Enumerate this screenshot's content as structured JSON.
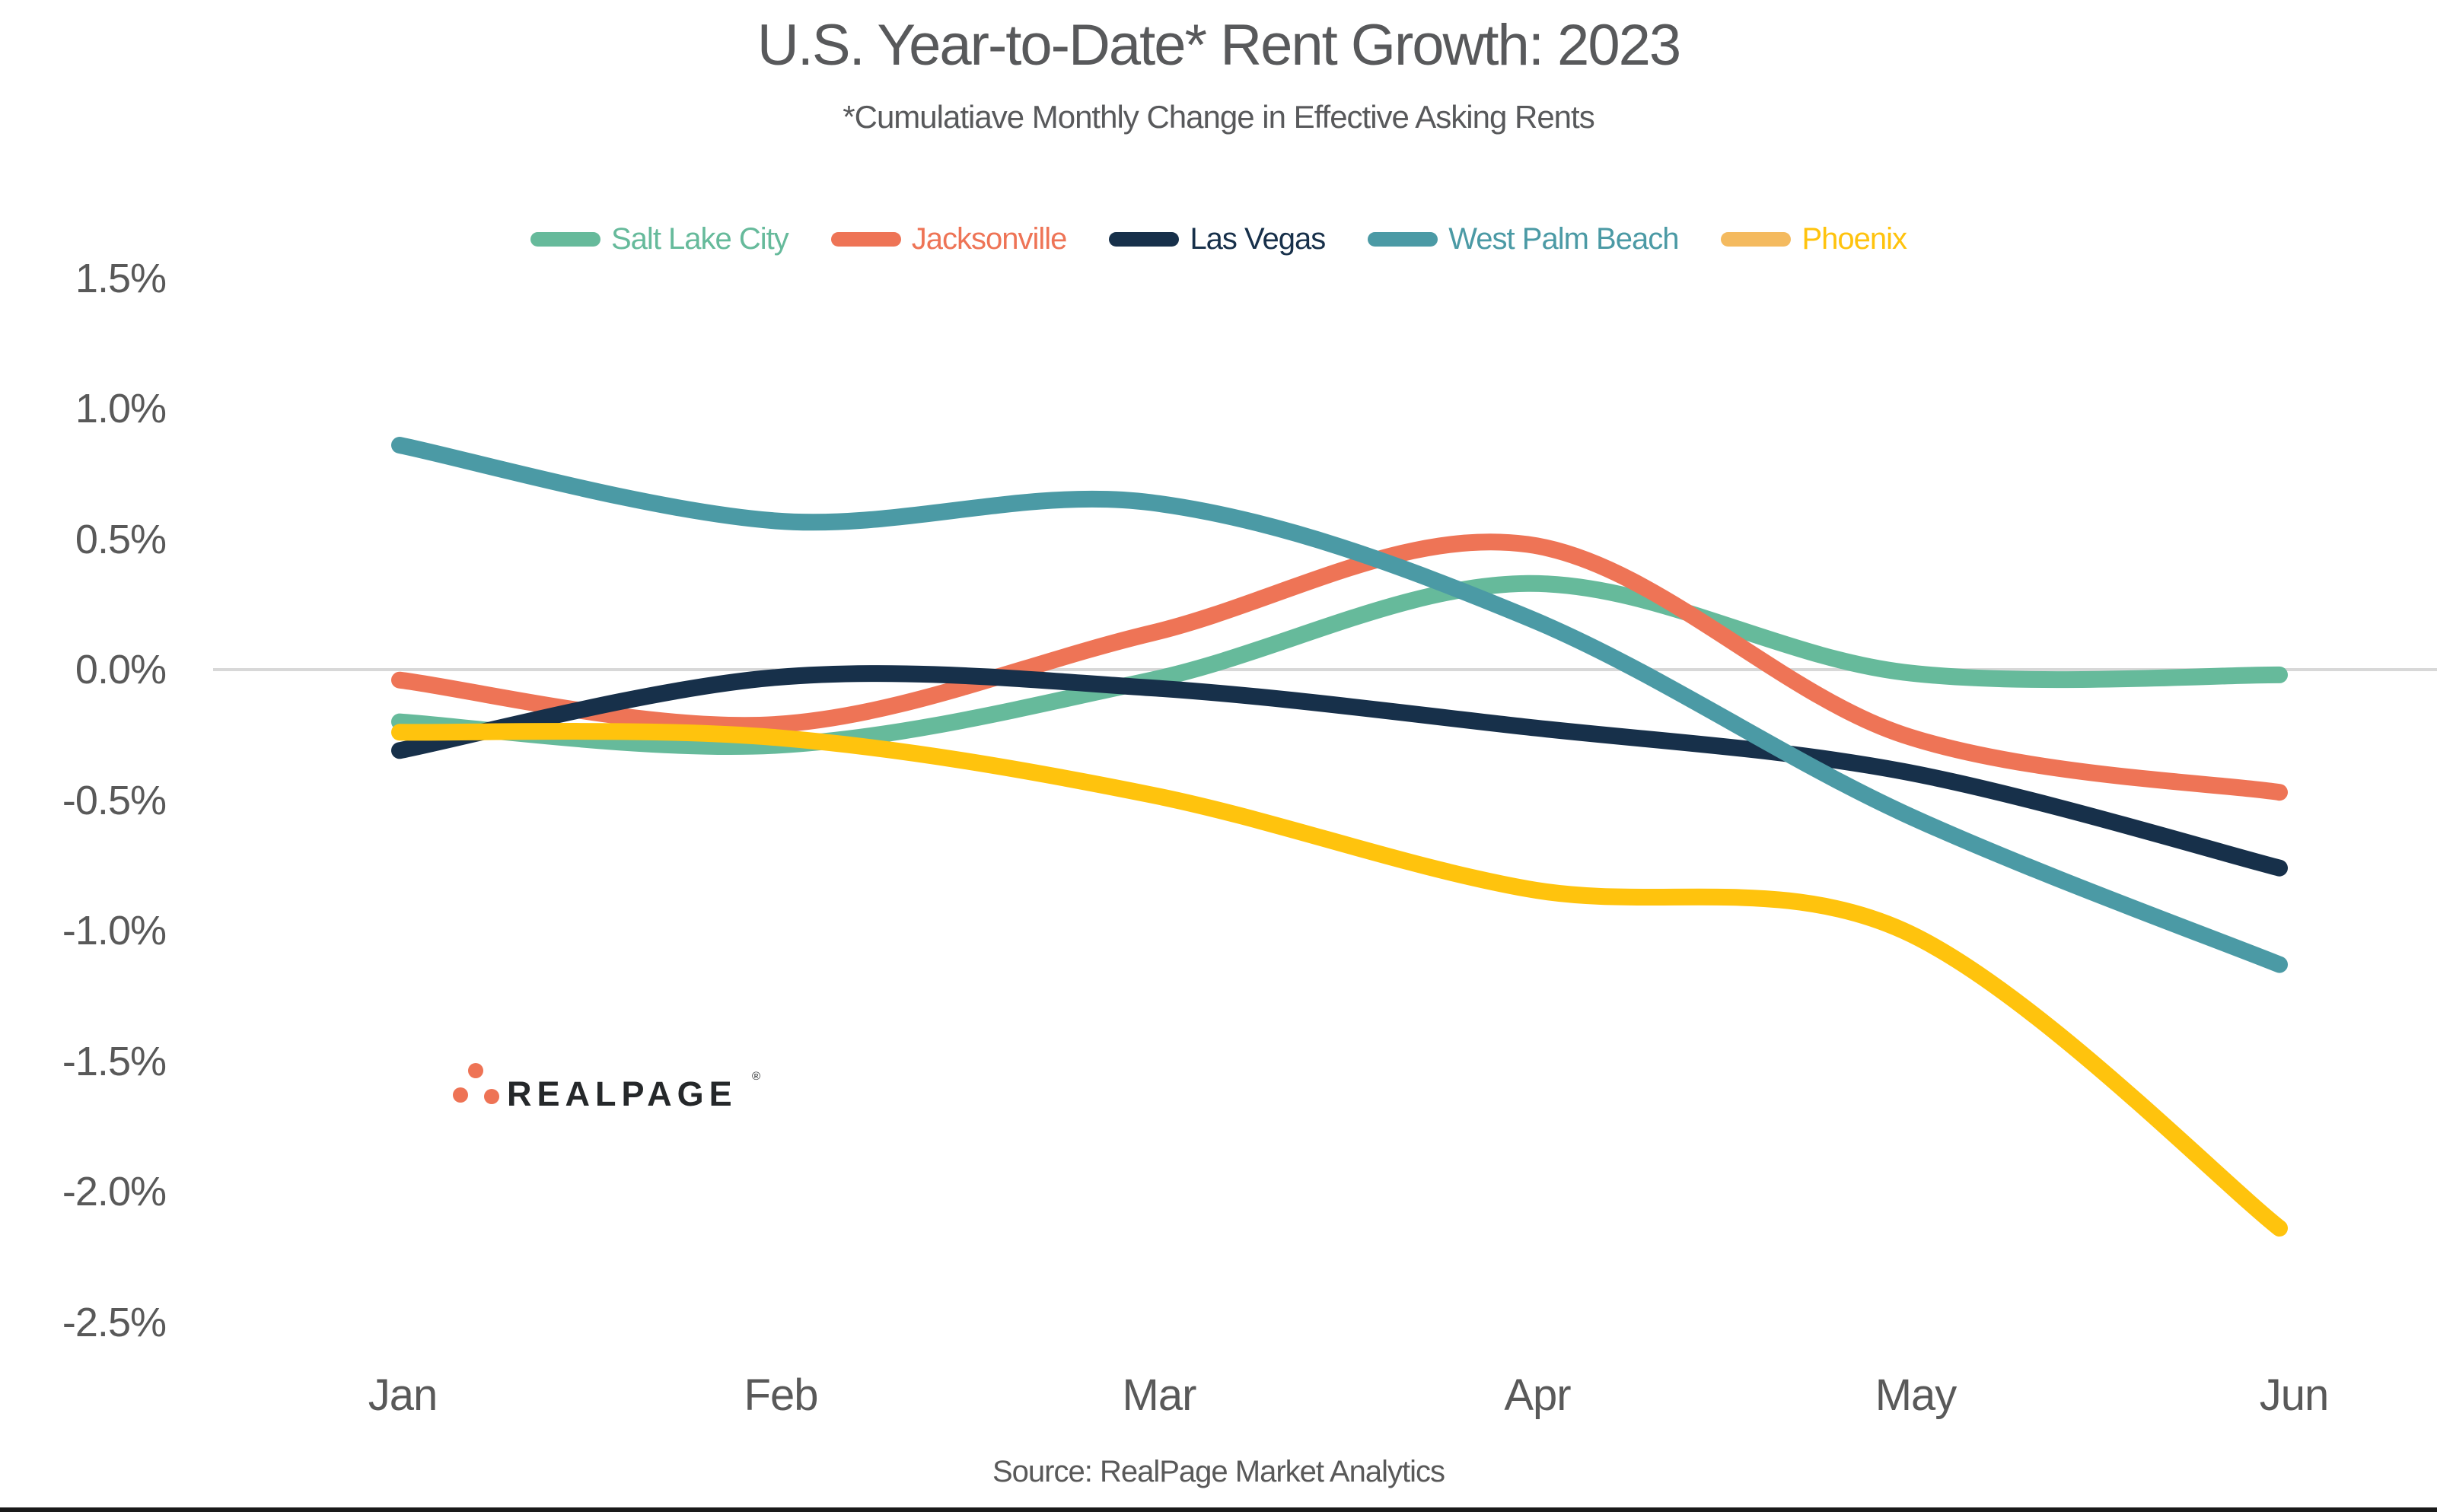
{
  "title": "U.S. Year-to-Date* Rent Growth: 2023",
  "subtitle": "*Cumulatiave Monthly Change in Effective Asking Rents",
  "source": "Source: RealPage Market Analytics",
  "logo": {
    "text": "REALPAGE",
    "registered_mark": "®",
    "dot_color": "#ee7355",
    "text_color": "#25282a"
  },
  "colors": {
    "title_text": "#58595b",
    "axis_text": "#595959",
    "zero_gridline": "#d8d8d8",
    "background": "#ffffff",
    "bottom_border": "#1a1a1a"
  },
  "chart_data": {
    "type": "line",
    "title": "U.S. Year-to-Date* Rent Growth: 2023",
    "subtitle": "*Cumulatiave Monthly Change in Effective Asking Rents",
    "categories": [
      "Jan",
      "Feb",
      "Mar",
      "Apr",
      "May",
      "Jun"
    ],
    "series": [
      {
        "name": "Salt Lake City",
        "color": "#66ba9b",
        "swatch_color": "#66ba9b",
        "values": [
          -0.2,
          -0.29,
          -0.04,
          0.33,
          -0.01,
          -0.02
        ]
      },
      {
        "name": "Jacksonville",
        "color": "#ee7456",
        "swatch_color": "#ee7456",
        "values": [
          -0.04,
          -0.21,
          0.14,
          0.48,
          -0.25,
          -0.47
        ]
      },
      {
        "name": "Las Vegas",
        "color": "#17304a",
        "swatch_color": "#17304a",
        "values": [
          -0.31,
          -0.03,
          -0.07,
          -0.22,
          -0.39,
          -0.76
        ]
      },
      {
        "name": "West Palm Beach",
        "color": "#4b9aa5",
        "swatch_color": "#4b9aa5",
        "values": [
          0.86,
          0.57,
          0.64,
          0.2,
          -0.55,
          -1.13
        ]
      },
      {
        "name": "Phoenix",
        "color": "#ffc30d",
        "swatch_color": "#f4ba5f",
        "values": [
          -0.24,
          -0.26,
          -0.48,
          -0.84,
          -1.0,
          -2.14
        ]
      }
    ],
    "y_ticks": [
      "1.5%",
      "1.0%",
      "0.5%",
      "0.0%",
      "-0.5%",
      "-1.0%",
      "-1.5%",
      "-2.0%",
      "-2.5%"
    ],
    "y_tick_values": [
      1.5,
      1.0,
      0.5,
      0.0,
      -0.5,
      -1.0,
      -1.5,
      -2.0,
      -2.5
    ],
    "ylim": [
      -2.5,
      1.5
    ],
    "xlabel": "",
    "ylabel": "",
    "grid": "horizontal zero line only",
    "legend_position": "top",
    "line_style": "smooth rounded"
  }
}
